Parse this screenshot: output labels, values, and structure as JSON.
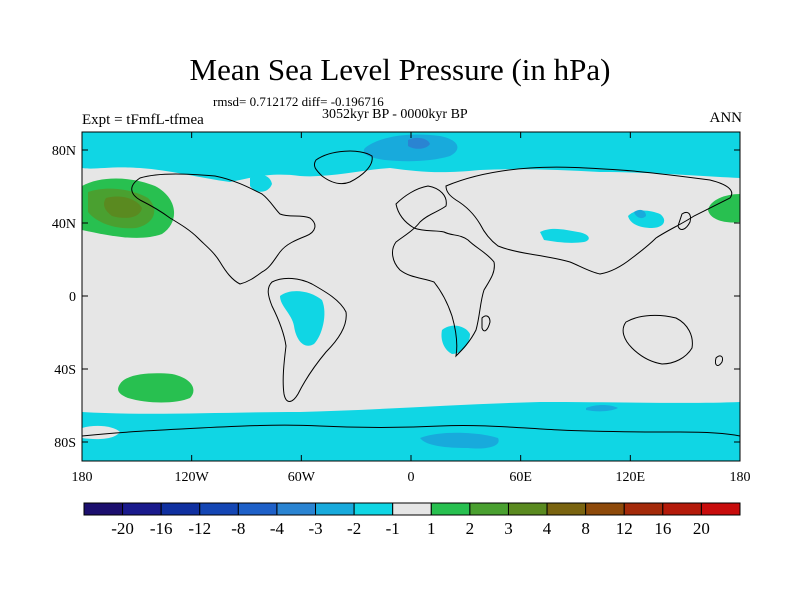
{
  "title": "Mean Sea Level Pressure (in hPa)",
  "stats": "rmsd= 0.712172  diff= -0.196716",
  "period": "3052kyr BP - 0000kyr BP",
  "experiment": "Expt = tFmfL-tfmea",
  "season": "ANN",
  "lat_labels": [
    "80N",
    "40N",
    "0",
    "40S",
    "80S"
  ],
  "lon_labels": [
    "180",
    "120W",
    "60W",
    "0",
    "60E",
    "120E",
    "180"
  ],
  "colorbar": {
    "labels": [
      "-20",
      "-16",
      "-12",
      "-8",
      "-4",
      "-3",
      "-2",
      "-1",
      "1",
      "2",
      "3",
      "4",
      "8",
      "12",
      "16",
      "20"
    ],
    "colors": [
      "#1c0f6e",
      "#1a1a8c",
      "#1030a0",
      "#1446b4",
      "#1e60c8",
      "#2a84d2",
      "#18aadc",
      "#10d6e4",
      "#e6e6e6",
      "#28c050",
      "#4aa030",
      "#5a8a20",
      "#7a6410",
      "#8e4a0a",
      "#a42a0a",
      "#b41a0a",
      "#c80c0c"
    ]
  },
  "colors": {
    "neutral": "#e6e6e6",
    "cyan": "#10d6e4",
    "light_blue": "#18aadc",
    "mid_blue": "#2a84d2",
    "green": "#28c050",
    "dark_green": "#4aa030",
    "olive": "#5a8a20"
  }
}
